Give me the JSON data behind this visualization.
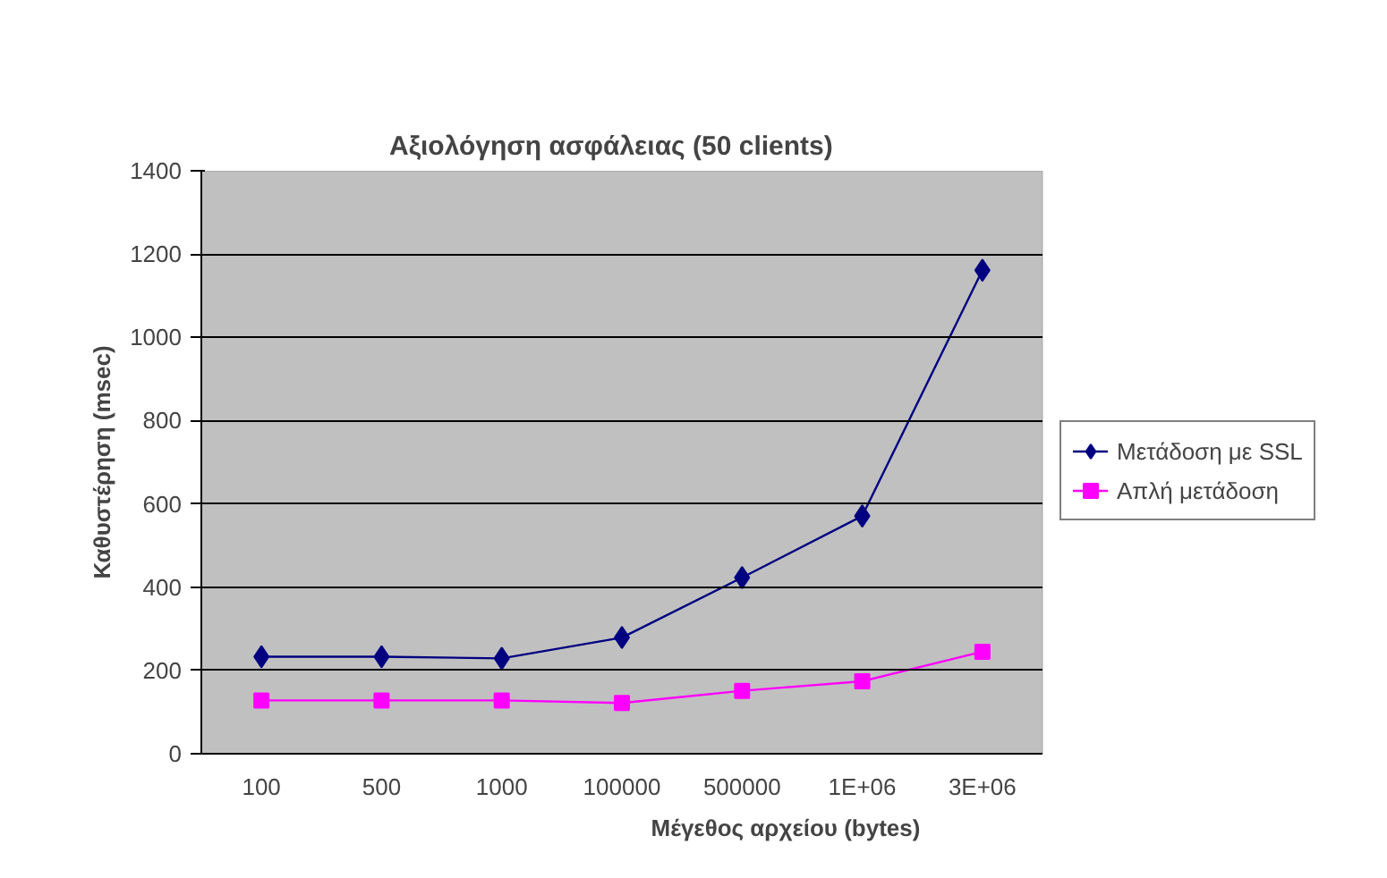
{
  "chart_data": {
    "type": "line",
    "title": "Αξιολόγηση ασφάλειας (50 clients)",
    "xlabel": "Μέγεθος αρχείου (bytes)",
    "ylabel": "Καθυστέρηση (msec)",
    "categories": [
      "100",
      "500",
      "1000",
      "100000",
      "500000",
      "1E+06",
      "3E+06"
    ],
    "series": [
      {
        "name": "Μετάδοση με SSL",
        "color": "#000080",
        "marker": "diamond",
        "values": [
          233,
          233,
          229,
          279,
          423,
          571,
          1161
        ]
      },
      {
        "name": "Απλή μετάδοση",
        "color": "#ff00ff",
        "marker": "square",
        "values": [
          128,
          128,
          128,
          122,
          151,
          174,
          245
        ]
      }
    ],
    "ylim": [
      0,
      1400
    ],
    "yticks": [
      0,
      200,
      400,
      600,
      800,
      1000,
      1200,
      1400
    ],
    "grid": "y",
    "legend": "right"
  }
}
